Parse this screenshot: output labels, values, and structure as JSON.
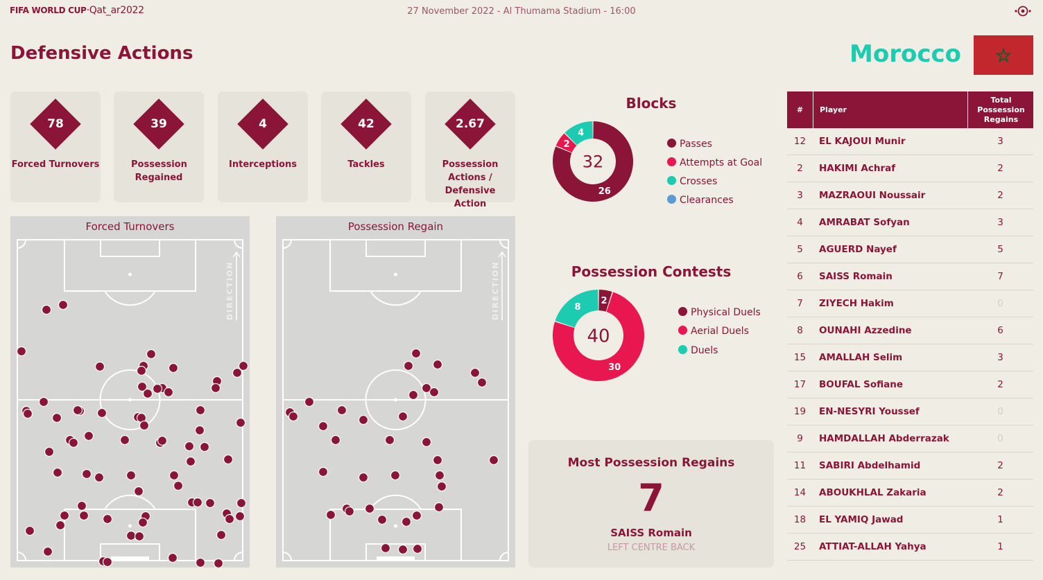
{
  "header": {
    "brand_a": "FIFA WORLD CUP",
    "brand_b": "·Qat_ar2022",
    "match_info": "27 November 2022 - Al Thumama Stadium - 16:00"
  },
  "page_title": "Defensive Actions",
  "team": {
    "name": "Morocco",
    "flag_colors": [
      "#c1272d",
      "#006233"
    ]
  },
  "colors": {
    "maroon": "#8a1538",
    "crimson": "#e8174f",
    "teal": "#1ccbb0",
    "blue": "#5b9bd5",
    "bg": "#efede4"
  },
  "stats": [
    {
      "value": "78",
      "label": "Forced Turnovers"
    },
    {
      "value": "39",
      "label": "Possession Regained"
    },
    {
      "value": "4",
      "label": "Interceptions"
    },
    {
      "value": "42",
      "label": "Tackles"
    },
    {
      "value": "2.67",
      "label": "Possession Actions / Defensive Action"
    }
  ],
  "pitches": {
    "forced_turnovers": {
      "title": "Forced Turnovers",
      "direction_label": "DIRECTION"
    },
    "possession_regain": {
      "title": "Possession Regain",
      "direction_label": "DIRECTION"
    }
  },
  "chart_data": [
    {
      "type": "donut",
      "title": "Blocks",
      "total": "32",
      "segments": [
        {
          "name": "Passes",
          "value": 26,
          "color": "#8a1538"
        },
        {
          "name": "Attempts at Goal",
          "value": 2,
          "color": "#e8174f"
        },
        {
          "name": "Crosses",
          "value": 4,
          "color": "#1ccbb0"
        },
        {
          "name": "Clearances",
          "value": 0,
          "color": "#5b9bd5"
        }
      ]
    },
    {
      "type": "donut",
      "title": "Possession Contests",
      "total": "40",
      "segments": [
        {
          "name": "Physical Duels",
          "value": 2,
          "color": "#8a1538"
        },
        {
          "name": "Aerial Duels",
          "value": 30,
          "color": "#e8174f"
        },
        {
          "name": "Duels",
          "value": 8,
          "color": "#1ccbb0"
        }
      ]
    }
  ],
  "most_regains": {
    "title": "Most Possession Regains",
    "value": "7",
    "player": "SAISS Romain",
    "position": "LEFT CENTRE BACK"
  },
  "table": {
    "headers": {
      "num": "#",
      "player": "Player",
      "total": "Total Possession Regains"
    },
    "rows": [
      {
        "num": "12",
        "player": "EL KAJOUI Munir",
        "total": "3"
      },
      {
        "num": "2",
        "player": "HAKIMI Achraf",
        "total": "2"
      },
      {
        "num": "3",
        "player": "MAZRAOUI Noussair",
        "total": "2"
      },
      {
        "num": "4",
        "player": "AMRABAT Sofyan",
        "total": "3"
      },
      {
        "num": "5",
        "player": "AGUERD Nayef",
        "total": "5"
      },
      {
        "num": "6",
        "player": "SAISS Romain",
        "total": "7"
      },
      {
        "num": "7",
        "player": "ZIYECH Hakim",
        "total": "0"
      },
      {
        "num": "8",
        "player": "OUNAHI Azzedine",
        "total": "6"
      },
      {
        "num": "15",
        "player": "AMALLAH Selim",
        "total": "3"
      },
      {
        "num": "17",
        "player": "BOUFAL Sofiane",
        "total": "2"
      },
      {
        "num": "19",
        "player": "EN-NESYRI Youssef",
        "total": "0"
      },
      {
        "num": "9",
        "player": "HAMDALLAH Abderrazak",
        "total": "0"
      },
      {
        "num": "11",
        "player": "SABIRI Abdelhamid",
        "total": "2"
      },
      {
        "num": "14",
        "player": "ABOUKHLAL Zakaria",
        "total": "2"
      },
      {
        "num": "18",
        "player": "EL YAMIQ Jawad",
        "total": "1"
      },
      {
        "num": "25",
        "player": "ATTIAT-ALLAH Yahya",
        "total": "1"
      }
    ]
  }
}
